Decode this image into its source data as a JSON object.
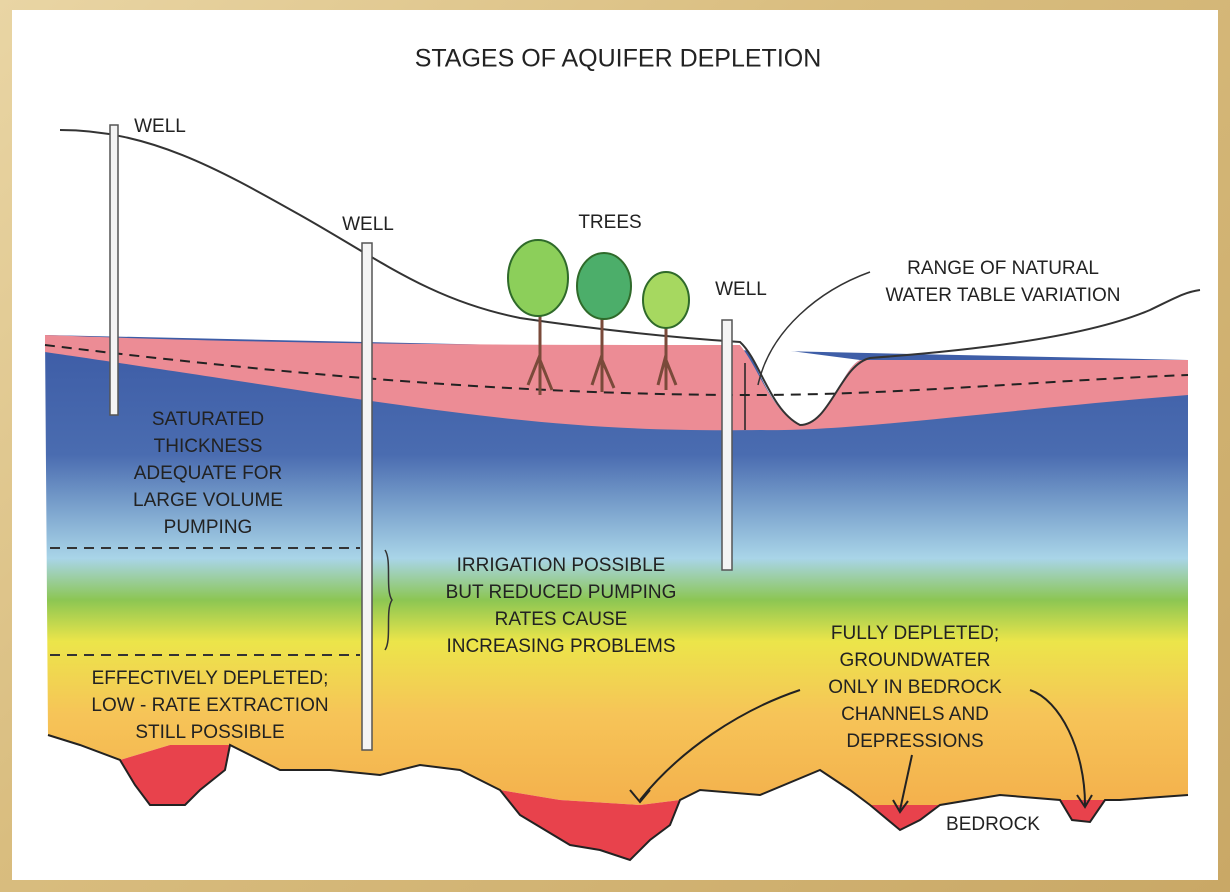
{
  "header": {
    "title": "STAGES OF AQUIFER DEPLETION"
  },
  "wells": [
    {
      "label": "WELL"
    },
    {
      "label": "WELL"
    },
    {
      "label": "WELL"
    }
  ],
  "trees": {
    "label": "TREES"
  },
  "callouts": {
    "water_table_range": [
      "RANGE OF NATURAL",
      "WATER TABLE VARIATION"
    ],
    "saturated": [
      "SATURATED",
      "THICKNESS",
      "ADEQUATE FOR",
      "LARGE VOLUME",
      "PUMPING"
    ],
    "irrigation": [
      "IRRIGATION POSSIBLE",
      "BUT REDUCED PUMPING",
      "RATES CAUSE",
      "INCREASING PROBLEMS"
    ],
    "effectively_depleted": [
      "EFFECTIVELY DEPLETED;",
      "LOW - RATE EXTRACTION",
      "STILL POSSIBLE"
    ],
    "fully_depleted": [
      "FULLY DEPLETED;",
      "GROUNDWATER",
      "ONLY IN BEDROCK",
      "CHANNELS AND",
      "DEPRESSIONS"
    ]
  },
  "bedrock": {
    "label": "BEDROCK"
  }
}
